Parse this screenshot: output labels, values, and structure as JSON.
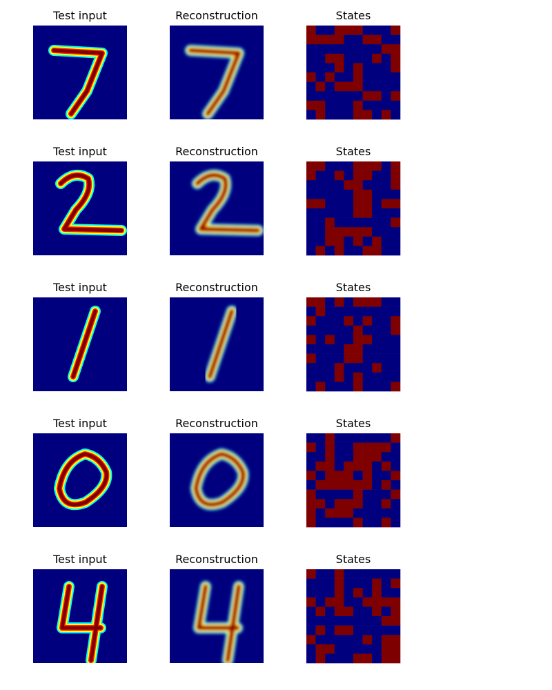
{
  "panels": [
    {
      "titles": [
        "Test input",
        "Reconstruction",
        "States"
      ],
      "states": [
        [
          1,
          0,
          0,
          1,
          1,
          1,
          0,
          0,
          0,
          1
        ],
        [
          1,
          1,
          1,
          1,
          0,
          0,
          1,
          1,
          0,
          0
        ],
        [
          0,
          0,
          0,
          0,
          0,
          0,
          0,
          0,
          1,
          1
        ],
        [
          0,
          0,
          1,
          1,
          0,
          0,
          0,
          1,
          0,
          1
        ],
        [
          0,
          0,
          0,
          1,
          0,
          1,
          0,
          0,
          0,
          1
        ],
        [
          1,
          0,
          1,
          0,
          0,
          1,
          0,
          0,
          0,
          0
        ],
        [
          0,
          1,
          0,
          1,
          1,
          1,
          0,
          0,
          0,
          0
        ],
        [
          0,
          0,
          0,
          0,
          0,
          0,
          1,
          1,
          0,
          1
        ],
        [
          1,
          1,
          0,
          0,
          0,
          1,
          0,
          0,
          0,
          0
        ],
        [
          0,
          1,
          0,
          0,
          0,
          1,
          1,
          0,
          1,
          0
        ]
      ]
    },
    {
      "titles": [
        "Test input",
        "Reconstruction",
        "States"
      ],
      "states": [
        [
          1,
          1,
          0,
          0,
          0,
          1,
          1,
          1,
          0,
          1
        ],
        [
          1,
          0,
          0,
          1,
          0,
          1,
          1,
          0,
          0,
          1
        ],
        [
          0,
          0,
          0,
          0,
          1,
          1,
          0,
          0,
          0,
          1
        ],
        [
          0,
          0,
          0,
          0,
          0,
          1,
          1,
          0,
          0,
          0
        ],
        [
          1,
          1,
          0,
          0,
          0,
          1,
          1,
          0,
          1,
          1
        ],
        [
          0,
          0,
          0,
          0,
          0,
          1,
          1,
          0,
          0,
          0
        ],
        [
          0,
          0,
          1,
          0,
          0,
          0,
          0,
          0,
          0,
          1
        ],
        [
          0,
          0,
          1,
          1,
          1,
          1,
          1,
          0,
          0,
          0
        ],
        [
          0,
          0,
          1,
          1,
          0,
          1,
          0,
          1,
          0,
          0
        ],
        [
          0,
          1,
          0,
          1,
          0,
          0,
          1,
          1,
          0,
          0
        ]
      ]
    },
    {
      "titles": [
        "Test input",
        "Reconstruction",
        "States"
      ],
      "states": [
        [
          1,
          1,
          0,
          1,
          0,
          1,
          1,
          1,
          0,
          0
        ],
        [
          0,
          1,
          0,
          0,
          0,
          0,
          0,
          0,
          0,
          0
        ],
        [
          1,
          0,
          0,
          0,
          1,
          0,
          1,
          0,
          0,
          1
        ],
        [
          0,
          0,
          0,
          0,
          0,
          1,
          0,
          0,
          0,
          1
        ],
        [
          1,
          0,
          1,
          0,
          0,
          1,
          1,
          0,
          0,
          0
        ],
        [
          0,
          0,
          0,
          0,
          1,
          1,
          0,
          0,
          0,
          0
        ],
        [
          1,
          0,
          0,
          0,
          1,
          1,
          0,
          0,
          0,
          0
        ],
        [
          0,
          0,
          0,
          1,
          0,
          0,
          0,
          1,
          0,
          0
        ],
        [
          0,
          0,
          0,
          1,
          0,
          1,
          0,
          0,
          0,
          0
        ],
        [
          0,
          1,
          0,
          0,
          0,
          1,
          0,
          0,
          0,
          1
        ]
      ]
    },
    {
      "titles": [
        "Test input",
        "Reconstruction",
        "States"
      ],
      "states": [
        [
          0,
          0,
          1,
          0,
          0,
          0,
          0,
          0,
          0,
          1
        ],
        [
          1,
          0,
          1,
          0,
          0,
          1,
          1,
          1,
          1,
          0
        ],
        [
          0,
          0,
          1,
          0,
          0,
          1,
          1,
          1,
          0,
          0
        ],
        [
          0,
          1,
          1,
          0,
          1,
          1,
          1,
          0,
          1,
          0
        ],
        [
          1,
          0,
          1,
          1,
          1,
          0,
          1,
          0,
          0,
          1
        ],
        [
          0,
          1,
          1,
          1,
          1,
          1,
          1,
          0,
          1,
          0
        ],
        [
          1,
          0,
          0,
          0,
          0,
          1,
          0,
          0,
          0,
          1
        ],
        [
          1,
          1,
          0,
          1,
          1,
          1,
          0,
          0,
          1,
          0
        ],
        [
          1,
          0,
          1,
          1,
          1,
          0,
          0,
          0,
          0,
          0
        ],
        [
          1,
          0,
          0,
          0,
          0,
          1,
          0,
          0,
          1,
          0
        ]
      ]
    },
    {
      "titles": [
        "Test input",
        "Reconstruction",
        "States"
      ],
      "states": [
        [
          1,
          0,
          0,
          1,
          0,
          0,
          0,
          0,
          0,
          0
        ],
        [
          0,
          0,
          0,
          1,
          0,
          0,
          0,
          1,
          0,
          1
        ],
        [
          0,
          0,
          0,
          1,
          0,
          1,
          0,
          1,
          0,
          0
        ],
        [
          1,
          0,
          1,
          1,
          0,
          0,
          1,
          1,
          1,
          1
        ],
        [
          0,
          1,
          0,
          1,
          1,
          0,
          0,
          1,
          0,
          1
        ],
        [
          0,
          0,
          0,
          0,
          0,
          0,
          0,
          0,
          1,
          1
        ],
        [
          0,
          1,
          0,
          1,
          1,
          0,
          0,
          0,
          0,
          0
        ],
        [
          1,
          0,
          0,
          0,
          0,
          0,
          1,
          0,
          1,
          1
        ],
        [
          0,
          1,
          1,
          0,
          0,
          0,
          0,
          0,
          1,
          1
        ],
        [
          0,
          1,
          0,
          0,
          0,
          1,
          1,
          0,
          1,
          1
        ]
      ]
    }
  ]
}
